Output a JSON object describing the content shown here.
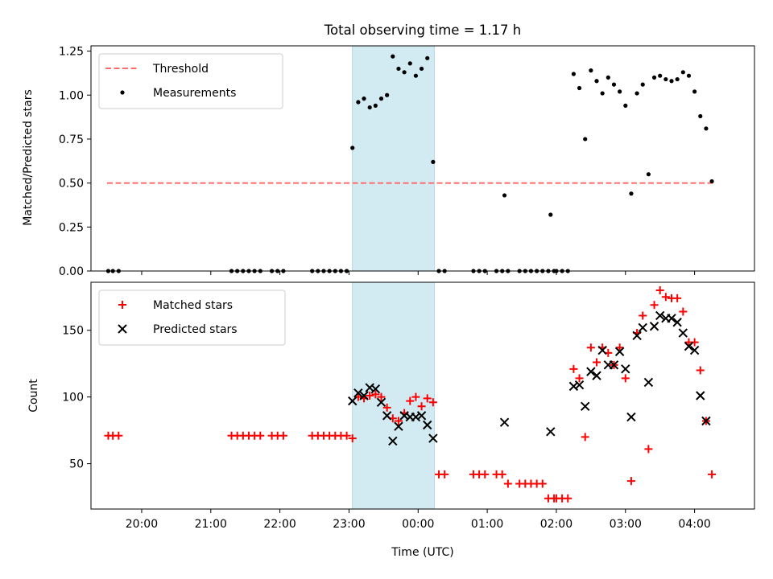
{
  "chart_data": [
    {
      "type": "scatter",
      "title": "Total observing time = 1.17 h",
      "ylabel": "Matched/Predicted stars",
      "xlabel": "",
      "xlim": [
        "19:16",
        "04:52"
      ],
      "ylim": [
        0,
        1.28
      ],
      "yticks": [
        "0.00",
        "0.25",
        "0.50",
        "0.75",
        "1.00",
        "1.25"
      ],
      "highlight_span": {
        "start": "23:03",
        "end": "00:14",
        "color": "#add8e6"
      },
      "legend": {
        "placement": "top-left",
        "entries": [
          "Threshold",
          "Measurements"
        ]
      },
      "threshold": {
        "name": "Threshold",
        "y": 0.5,
        "x_start": "19:30",
        "x_end": "04:17",
        "color": "#ff6b6b"
      },
      "series": [
        {
          "name": "Measurements",
          "color": "#000000",
          "points": [
            [
              "19:31",
              0
            ],
            [
              "19:35",
              0
            ],
            [
              "19:40",
              0
            ],
            [
              "21:18",
              0
            ],
            [
              "21:23",
              0
            ],
            [
              "21:28",
              0
            ],
            [
              "21:33",
              0
            ],
            [
              "21:38",
              0
            ],
            [
              "21:43",
              0
            ],
            [
              "21:53",
              0
            ],
            [
              "21:58",
              0
            ],
            [
              "22:03",
              0
            ],
            [
              "22:28",
              0
            ],
            [
              "22:33",
              0
            ],
            [
              "22:38",
              0
            ],
            [
              "22:43",
              0
            ],
            [
              "22:48",
              0
            ],
            [
              "22:53",
              0
            ],
            [
              "22:58",
              0
            ],
            [
              "23:03",
              0.7
            ],
            [
              "23:08",
              0.96
            ],
            [
              "23:13",
              0.98
            ],
            [
              "23:18",
              0.93
            ],
            [
              "23:23",
              0.94
            ],
            [
              "23:28",
              0.98
            ],
            [
              "23:33",
              1.0
            ],
            [
              "23:38",
              1.22
            ],
            [
              "23:43",
              1.15
            ],
            [
              "23:48",
              1.13
            ],
            [
              "23:53",
              1.18
            ],
            [
              "23:58",
              1.11
            ],
            [
              "00:03",
              1.15
            ],
            [
              "00:08",
              1.21
            ],
            [
              "00:13",
              0.62
            ],
            [
              "00:18",
              0
            ],
            [
              "00:23",
              0
            ],
            [
              "00:48",
              0
            ],
            [
              "00:53",
              0
            ],
            [
              "00:58",
              0
            ],
            [
              "01:08",
              0
            ],
            [
              "01:13",
              0
            ],
            [
              "01:18",
              0
            ],
            [
              "01:15",
              0.43
            ],
            [
              "01:28",
              0
            ],
            [
              "01:33",
              0
            ],
            [
              "01:38",
              0
            ],
            [
              "01:43",
              0
            ],
            [
              "01:48",
              0
            ],
            [
              "01:53",
              0
            ],
            [
              "01:58",
              0
            ],
            [
              "01:55",
              0.32
            ],
            [
              "02:00",
              0
            ],
            [
              "02:05",
              0
            ],
            [
              "02:10",
              0
            ],
            [
              "02:15",
              1.12
            ],
            [
              "02:20",
              1.04
            ],
            [
              "02:25",
              0.75
            ],
            [
              "02:30",
              1.14
            ],
            [
              "02:35",
              1.08
            ],
            [
              "02:40",
              1.01
            ],
            [
              "02:45",
              1.1
            ],
            [
              "02:50",
              1.06
            ],
            [
              "02:55",
              1.02
            ],
            [
              "03:00",
              0.94
            ],
            [
              "03:05",
              0.44
            ],
            [
              "03:10",
              1.01
            ],
            [
              "03:15",
              1.06
            ],
            [
              "03:20",
              0.55
            ],
            [
              "03:25",
              1.1
            ],
            [
              "03:30",
              1.11
            ],
            [
              "03:35",
              1.09
            ],
            [
              "03:40",
              1.08
            ],
            [
              "03:45",
              1.09
            ],
            [
              "03:50",
              1.13
            ],
            [
              "03:55",
              1.11
            ],
            [
              "04:00",
              1.02
            ],
            [
              "04:05",
              0.88
            ],
            [
              "04:10",
              0.81
            ],
            [
              "04:15",
              0.51
            ]
          ]
        }
      ]
    },
    {
      "type": "scatter",
      "title": "",
      "ylabel": "Count",
      "xlabel": "Time (UTC)",
      "xlim": [
        "19:16",
        "04:52"
      ],
      "ylim": [
        16,
        186
      ],
      "yticks": [
        "50",
        "100",
        "150"
      ],
      "xticks": [
        "20:00",
        "21:00",
        "22:00",
        "23:00",
        "00:00",
        "01:00",
        "02:00",
        "03:00",
        "04:00"
      ],
      "highlight_span": {
        "start": "23:03",
        "end": "00:14",
        "color": "#add8e6"
      },
      "legend": {
        "placement": "top-left",
        "entries": [
          "Matched stars",
          "Predicted stars"
        ]
      },
      "series": [
        {
          "name": "Matched stars",
          "marker": "plus",
          "color": "#ff0000",
          "points": [
            [
              "19:31",
              71
            ],
            [
              "19:35",
              71
            ],
            [
              "19:40",
              71
            ],
            [
              "21:18",
              71
            ],
            [
              "21:23",
              71
            ],
            [
              "21:28",
              71
            ],
            [
              "21:33",
              71
            ],
            [
              "21:38",
              71
            ],
            [
              "21:43",
              71
            ],
            [
              "21:53",
              71
            ],
            [
              "21:58",
              71
            ],
            [
              "22:03",
              71
            ],
            [
              "22:28",
              71
            ],
            [
              "22:33",
              71
            ],
            [
              "22:38",
              71
            ],
            [
              "22:43",
              71
            ],
            [
              "22:48",
              71
            ],
            [
              "22:53",
              71
            ],
            [
              "22:58",
              71
            ],
            [
              "23:03",
              69
            ],
            [
              "23:08",
              100
            ],
            [
              "23:13",
              99
            ],
            [
              "23:18",
              101
            ],
            [
              "23:23",
              102
            ],
            [
              "23:28",
              100
            ],
            [
              "23:33",
              92
            ],
            [
              "23:38",
              84
            ],
            [
              "23:43",
              82
            ],
            [
              "23:48",
              88
            ],
            [
              "23:53",
              97
            ],
            [
              "23:58",
              100
            ],
            [
              "00:03",
              93
            ],
            [
              "00:08",
              99
            ],
            [
              "00:13",
              96
            ],
            [
              "00:18",
              42
            ],
            [
              "00:23",
              42
            ],
            [
              "00:48",
              42
            ],
            [
              "00:53",
              42
            ],
            [
              "00:58",
              42
            ],
            [
              "01:08",
              42
            ],
            [
              "01:13",
              42
            ],
            [
              "01:18",
              35
            ],
            [
              "01:28",
              35
            ],
            [
              "01:33",
              35
            ],
            [
              "01:38",
              35
            ],
            [
              "01:43",
              35
            ],
            [
              "01:48",
              35
            ],
            [
              "01:53",
              24
            ],
            [
              "01:58",
              24
            ],
            [
              "02:00",
              24
            ],
            [
              "02:05",
              24
            ],
            [
              "02:10",
              24
            ],
            [
              "02:15",
              121
            ],
            [
              "02:20",
              114
            ],
            [
              "02:25",
              70
            ],
            [
              "02:30",
              137
            ],
            [
              "02:35",
              126
            ],
            [
              "02:40",
              137
            ],
            [
              "02:45",
              133
            ],
            [
              "02:50",
              124
            ],
            [
              "02:55",
              137
            ],
            [
              "03:00",
              114
            ],
            [
              "03:05",
              37
            ],
            [
              "03:10",
              148
            ],
            [
              "03:15",
              161
            ],
            [
              "03:20",
              61
            ],
            [
              "03:25",
              169
            ],
            [
              "03:30",
              180
            ],
            [
              "03:35",
              175
            ],
            [
              "03:40",
              174
            ],
            [
              "03:45",
              174
            ],
            [
              "03:50",
              164
            ],
            [
              "03:55",
              141
            ],
            [
              "04:00",
              141
            ],
            [
              "04:05",
              120
            ],
            [
              "04:10",
              82
            ],
            [
              "04:15",
              42
            ]
          ]
        },
        {
          "name": "Predicted stars",
          "marker": "x",
          "color": "#000000",
          "points": [
            [
              "23:03",
              97
            ],
            [
              "23:08",
              103
            ],
            [
              "23:13",
              101
            ],
            [
              "23:18",
              107
            ],
            [
              "23:23",
              106
            ],
            [
              "23:28",
              96
            ],
            [
              "23:33",
              86
            ],
            [
              "23:38",
              67
            ],
            [
              "23:43",
              78
            ],
            [
              "23:48",
              86
            ],
            [
              "23:53",
              85
            ],
            [
              "23:58",
              85
            ],
            [
              "00:03",
              86
            ],
            [
              "00:08",
              79
            ],
            [
              "00:13",
              69
            ],
            [
              "01:15",
              81
            ],
            [
              "01:55",
              74
            ],
            [
              "02:15",
              108
            ],
            [
              "02:20",
              109
            ],
            [
              "02:25",
              93
            ],
            [
              "02:30",
              119
            ],
            [
              "02:35",
              116
            ],
            [
              "02:40",
              135
            ],
            [
              "02:45",
              124
            ],
            [
              "02:50",
              124
            ],
            [
              "02:55",
              134
            ],
            [
              "03:00",
              121
            ],
            [
              "03:05",
              85
            ],
            [
              "03:10",
              146
            ],
            [
              "03:15",
              152
            ],
            [
              "03:20",
              111
            ],
            [
              "03:25",
              153
            ],
            [
              "03:30",
              161
            ],
            [
              "03:35",
              159
            ],
            [
              "03:40",
              159
            ],
            [
              "03:45",
              156
            ],
            [
              "03:50",
              148
            ],
            [
              "03:55",
              138
            ],
            [
              "04:00",
              135
            ],
            [
              "04:05",
              101
            ],
            [
              "04:10",
              82
            ]
          ]
        }
      ]
    }
  ]
}
